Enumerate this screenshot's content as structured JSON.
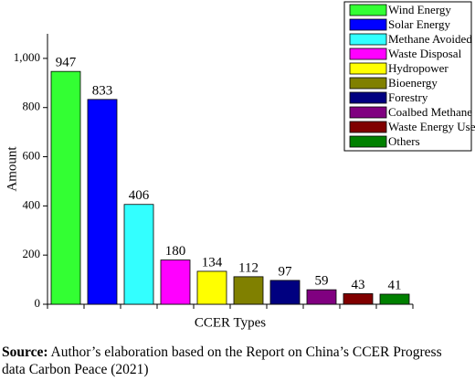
{
  "chart_data": {
    "type": "bar",
    "x_label": "CCER Types",
    "y_label": "Amount",
    "categories": [
      "Wind Energy",
      "Solar Energy",
      "Methane Avoided",
      "Waste Disposal",
      "Hydropower",
      "Bioenergy",
      "Forestry",
      "Coalbed Methane",
      "Waste Energy Use",
      "Others"
    ],
    "values": [
      947,
      833,
      406,
      180,
      134,
      112,
      97,
      59,
      43,
      41
    ],
    "colors": [
      "#33ff33",
      "#0000ff",
      "#33ffff",
      "#ff00ff",
      "#ffff00",
      "#808000",
      "#000080",
      "#800080",
      "#800000",
      "#008000"
    ],
    "ylim": [
      0,
      1100
    ],
    "yticks": [
      0,
      200,
      400,
      600,
      800,
      {
        "value": 1000,
        "label": "1,000"
      }
    ],
    "legend": "top-right"
  },
  "source": {
    "label": "Source:",
    "text": "Author’s elaboration based on the Report on China’s CCER Progress data Carbon Peace (2021)"
  }
}
